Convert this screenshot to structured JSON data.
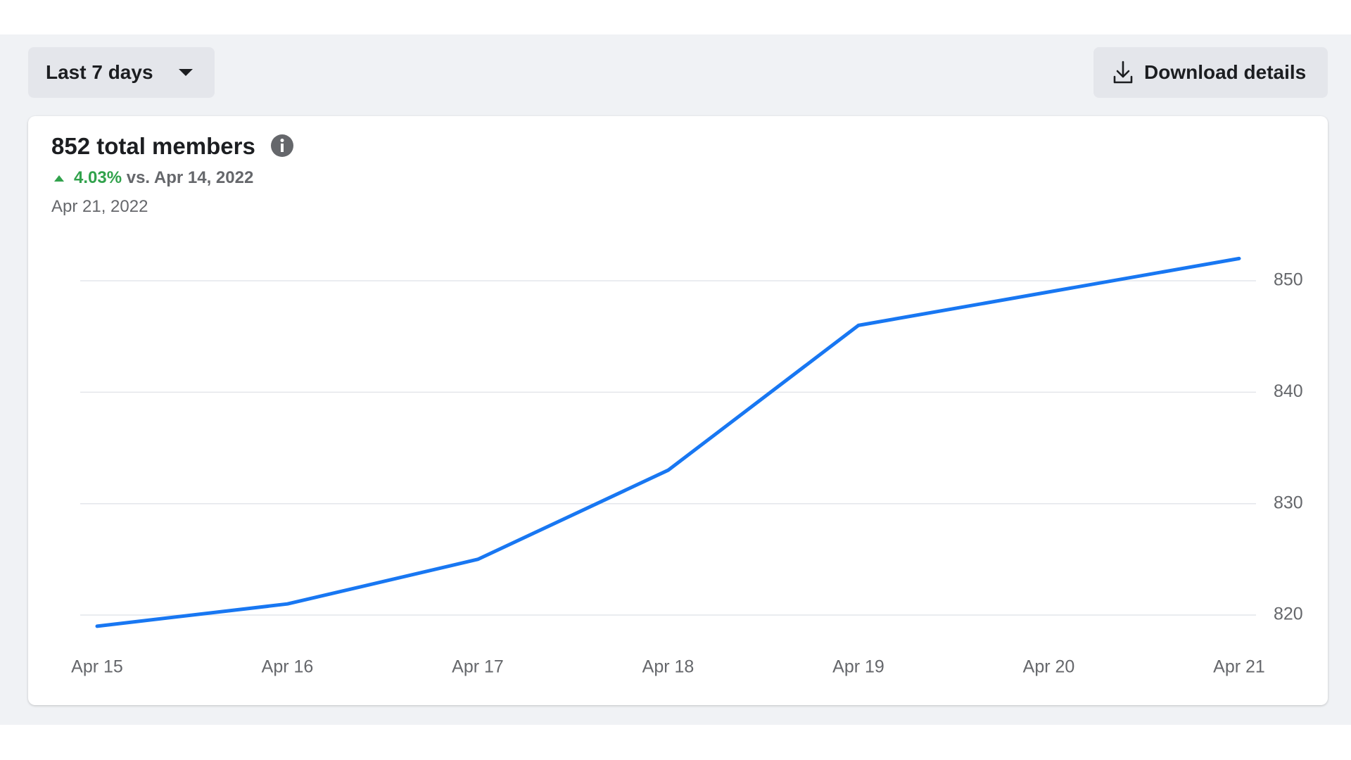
{
  "controls": {
    "range": "Last 7 days",
    "download": "Download details"
  },
  "summary": {
    "title": "852 total members",
    "change": "4.03%",
    "comparison": "vs. Apr 14, 2022",
    "date": "Apr 21, 2022"
  },
  "chart_data": {
    "type": "line",
    "categories": [
      "Apr 15",
      "Apr 16",
      "Apr 17",
      "Apr 18",
      "Apr 19",
      "Apr 20",
      "Apr 21"
    ],
    "series": [
      {
        "name": "Total members",
        "color": "#1877f2",
        "values": [
          819,
          821,
          825,
          833,
          846,
          849,
          852
        ]
      }
    ],
    "ylim": [
      818,
      854
    ],
    "yticks": [
      820,
      830,
      840,
      850
    ],
    "grid": true
  }
}
